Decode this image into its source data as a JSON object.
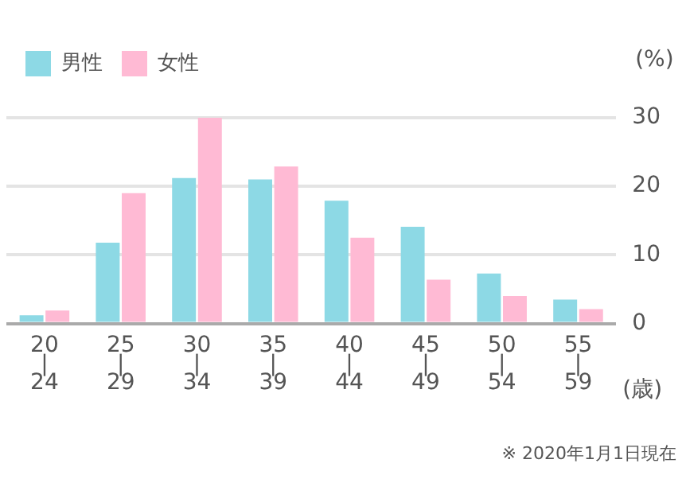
{
  "chart_data": {
    "type": "bar",
    "categories": [
      "20\n|\n24",
      "25\n|\n29",
      "30\n|\n34",
      "35\n|\n39",
      "40\n|\n44",
      "45\n|\n49",
      "50\n|\n54",
      "55\n|\n59"
    ],
    "series": [
      {
        "name": "男性",
        "color": "#8dd9e5",
        "values": [
          1.2,
          11.8,
          21.2,
          21.0,
          17.9,
          14.1,
          7.3,
          3.5
        ]
      },
      {
        "name": "女性",
        "color": "#ffbad4",
        "values": [
          1.9,
          19.0,
          30.0,
          22.9,
          12.5,
          6.4,
          4.0,
          2.1
        ]
      }
    ],
    "ylabel": "(%)",
    "xlabel": "(歳)",
    "ylim": [
      0,
      30
    ],
    "yticks": [
      0,
      10,
      20,
      30
    ],
    "grid": "y",
    "legend": "top left",
    "annotations": [
      "※ 2020年1月1日現在"
    ]
  }
}
